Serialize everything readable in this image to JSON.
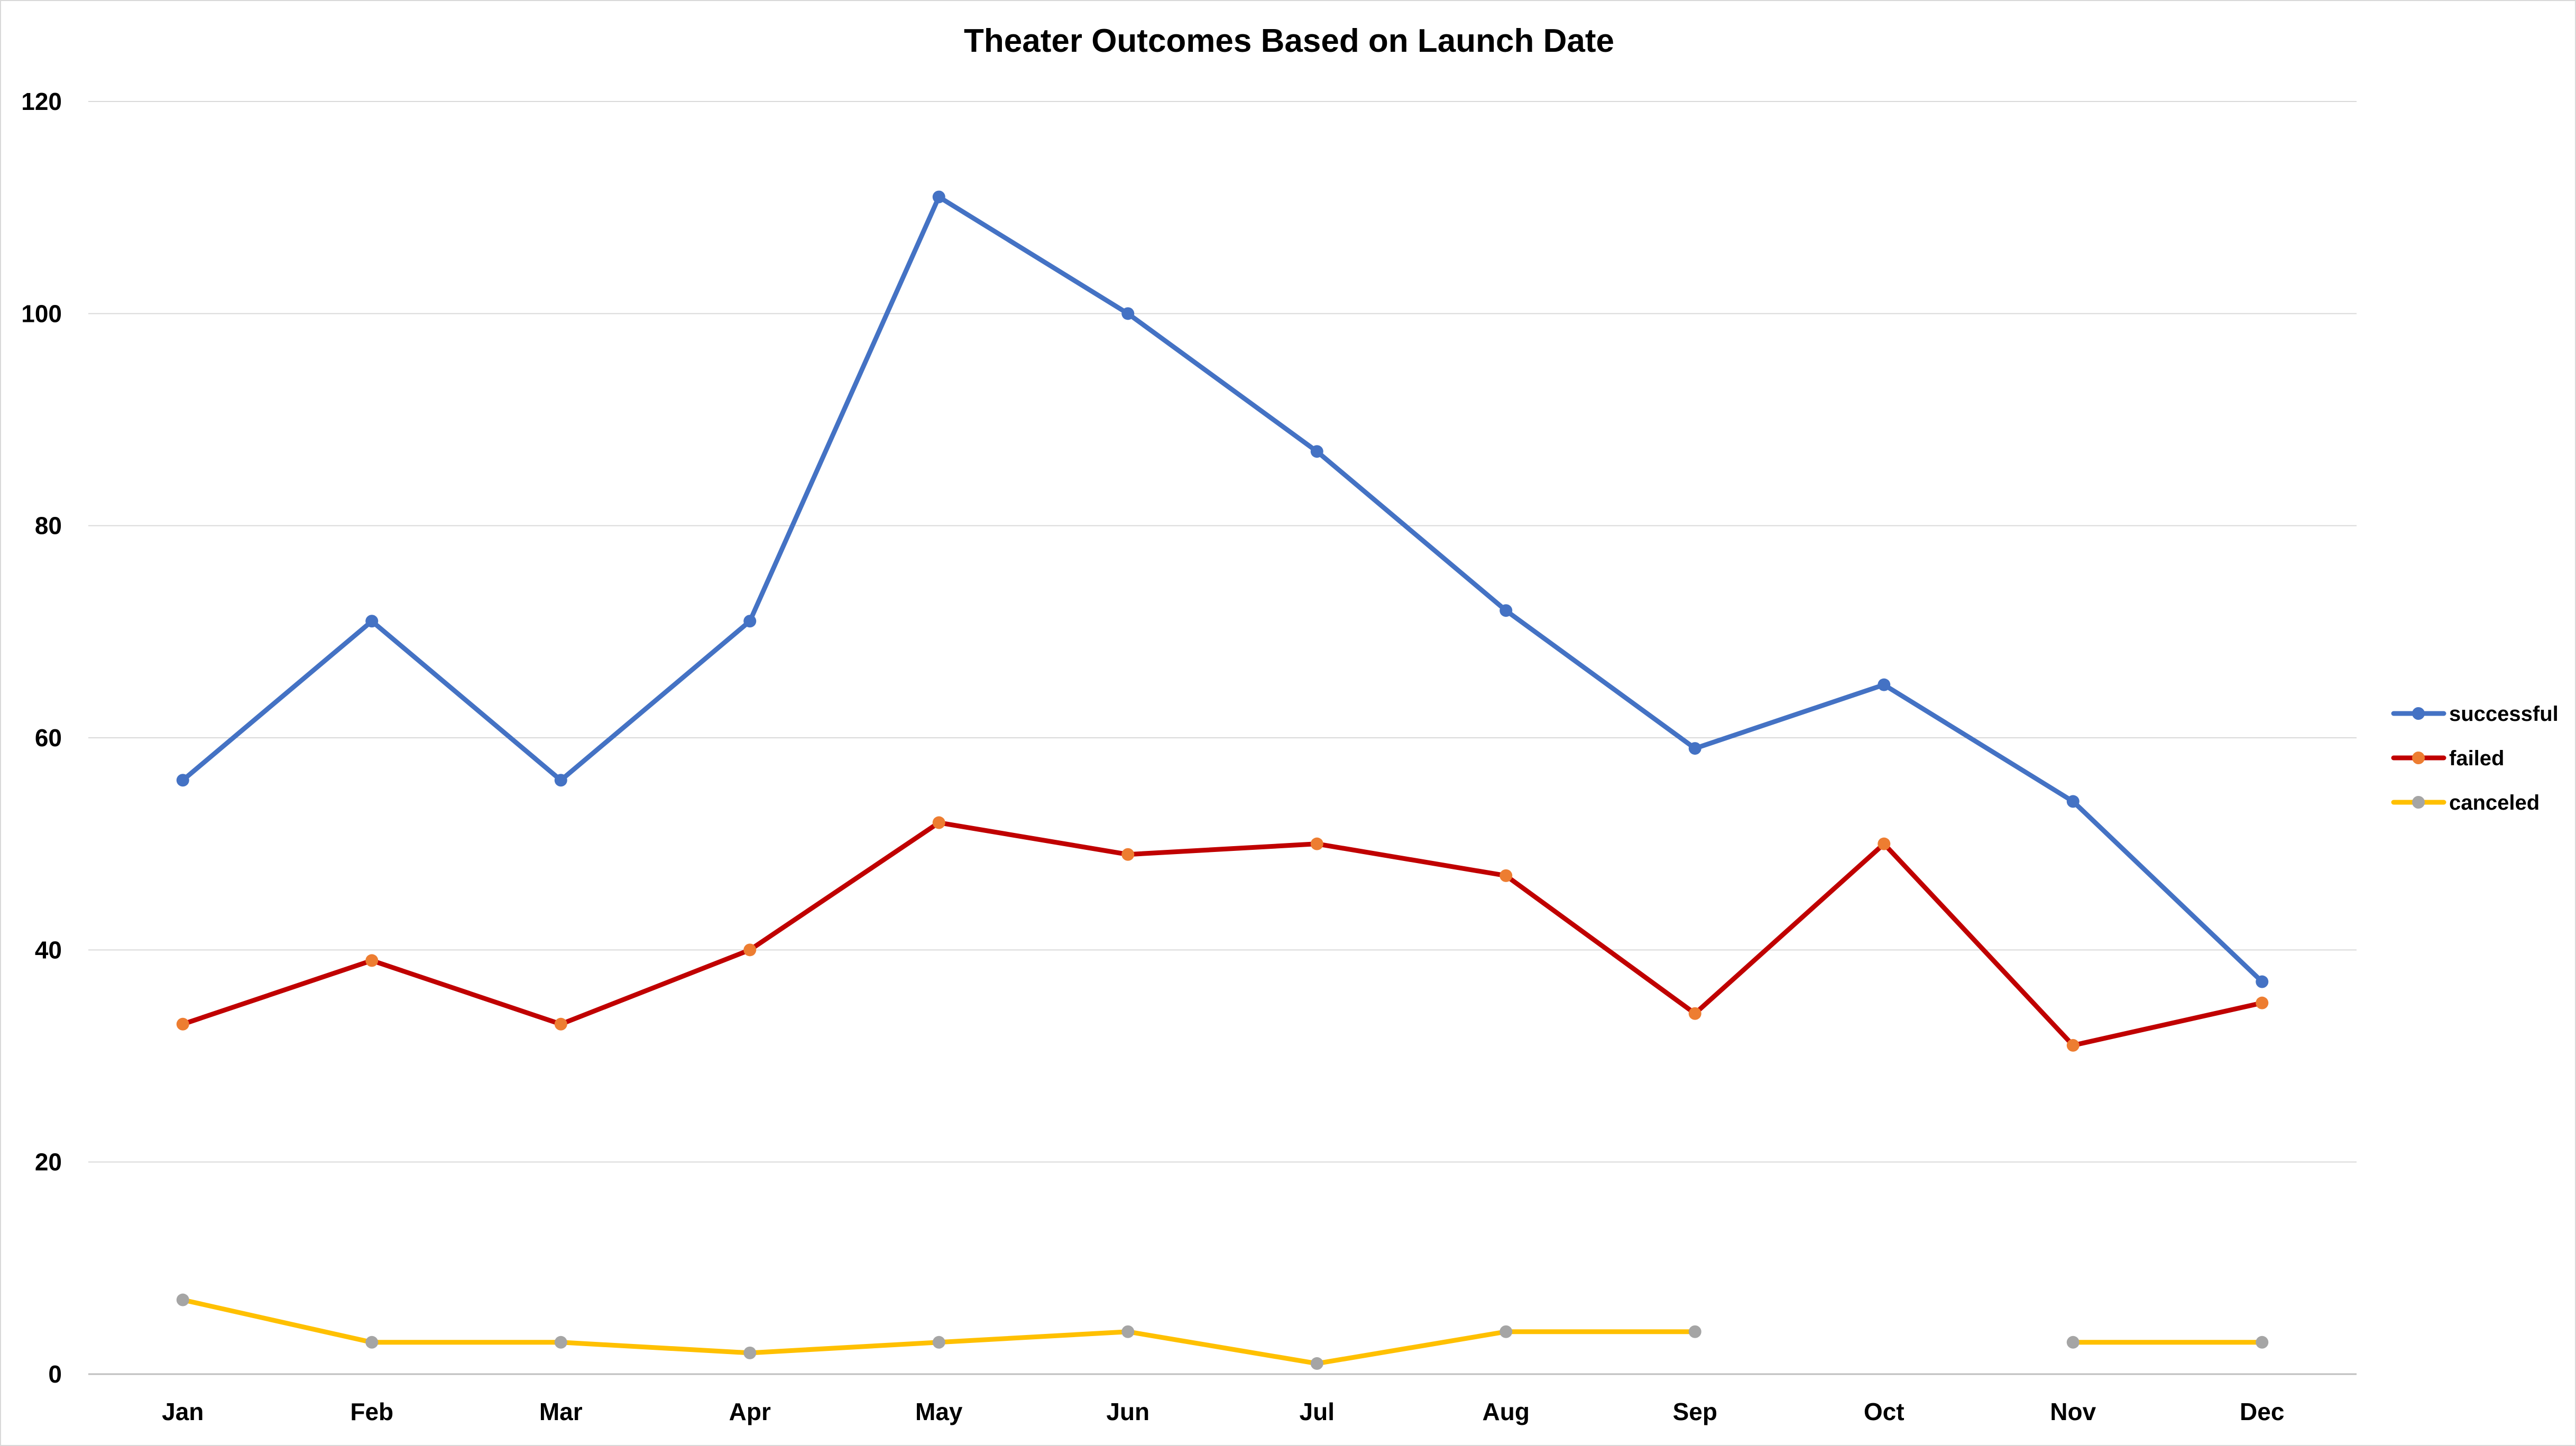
{
  "chart_data": {
    "type": "line",
    "title": "Theater Outcomes Based on Launch Date",
    "xlabel": "",
    "ylabel": "",
    "categories": [
      "Jan",
      "Feb",
      "Mar",
      "Apr",
      "May",
      "Jun",
      "Jul",
      "Aug",
      "Sep",
      "Oct",
      "Nov",
      "Dec"
    ],
    "ylim": [
      0,
      120
    ],
    "yticks": [
      0,
      20,
      40,
      60,
      80,
      100,
      120
    ],
    "grid": true,
    "legend_position": "right",
    "series": [
      {
        "name": "successful",
        "values": [
          56,
          71,
          56,
          71,
          111,
          100,
          87,
          72,
          59,
          65,
          54,
          37
        ],
        "line_color": "#4472c4",
        "marker_color": "#4472c4"
      },
      {
        "name": "failed",
        "values": [
          33,
          39,
          33,
          40,
          52,
          49,
          50,
          47,
          34,
          50,
          31,
          35
        ],
        "line_color": "#c00000",
        "marker_color": "#ed7d31"
      },
      {
        "name": "canceled",
        "values": [
          7,
          3,
          3,
          2,
          3,
          4,
          1,
          4,
          4,
          null,
          3,
          3
        ],
        "line_color": "#ffc000",
        "marker_color": "#a5a5a5"
      }
    ]
  }
}
